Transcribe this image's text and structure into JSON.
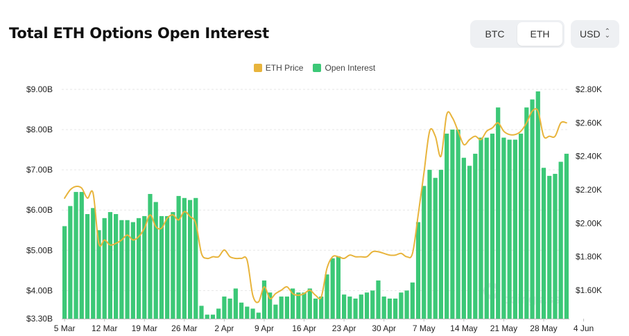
{
  "header": {
    "title": "Total ETH Options Open Interest"
  },
  "asset_toggle": {
    "options": [
      "BTC",
      "ETH"
    ],
    "selected": "ETH"
  },
  "currency": {
    "value": "USD"
  },
  "watermark": "coinglass",
  "colors": {
    "bar": "#3cc877",
    "line": "#e8b43c",
    "grid": "#e6e6e6",
    "axis_text": "#222222"
  },
  "chart_data": {
    "type": "bar",
    "title": "Total ETH Options Open Interest",
    "legend": [
      "ETH Price",
      "Open Interest"
    ],
    "legend_position": "top-center",
    "grid": true,
    "x_ticks": [
      "5 Mar",
      "12 Mar",
      "19 Mar",
      "26 Mar",
      "2 Apr",
      "9 Apr",
      "16 Apr",
      "23 Apr",
      "30 Apr",
      "7 May",
      "14 May",
      "21 May",
      "28 May",
      "4 Jun"
    ],
    "y_left": {
      "ticks": [
        "$3.30B",
        "$4.00B",
        "$5.00B",
        "$6.00B",
        "$7.00B",
        "$8.00B",
        "$9.00B"
      ],
      "tick_values": [
        3.3,
        4,
        5,
        6,
        7,
        8,
        9
      ],
      "range": [
        3.3,
        9.0
      ],
      "unit": "B USD"
    },
    "y_right": {
      "ticks": [
        "$1.60K",
        "$1.80K",
        "$2.00K",
        "$2.20K",
        "$2.40K",
        "$2.60K",
        "$2.80K"
      ],
      "tick_values": [
        1.6,
        1.8,
        2.0,
        2.2,
        2.4,
        2.6,
        2.8
      ],
      "range": [
        1.43,
        2.8
      ],
      "unit": "K USD"
    },
    "series": [
      {
        "name": "Open Interest",
        "type": "bar",
        "axis": "left",
        "start_date": "2023-03-05",
        "values": [
          5.6,
          6.1,
          6.45,
          6.45,
          5.9,
          6.05,
          5.5,
          5.8,
          5.95,
          5.9,
          5.75,
          5.75,
          5.7,
          5.8,
          5.85,
          6.4,
          6.2,
          5.85,
          5.85,
          5.95,
          6.35,
          6.3,
          6.25,
          6.3,
          3.62,
          3.4,
          3.4,
          3.55,
          3.85,
          3.8,
          4.05,
          3.7,
          3.6,
          3.55,
          3.45,
          4.25,
          3.95,
          3.65,
          3.85,
          3.85,
          4.05,
          3.95,
          3.95,
          4.05,
          3.8,
          3.85,
          4.4,
          4.8,
          4.85,
          3.9,
          3.85,
          3.8,
          3.9,
          3.95,
          4.0,
          4.25,
          3.85,
          3.8,
          3.8,
          3.95,
          4.0,
          4.2,
          5.7,
          6.6,
          7.0,
          6.8,
          7.0,
          7.9,
          8.0,
          8.0,
          7.3,
          7.1,
          7.4,
          7.8,
          7.8,
          7.9,
          8.55,
          7.8,
          7.75,
          7.75,
          7.9,
          8.55,
          8.75,
          8.95,
          7.05,
          6.85,
          6.9,
          7.2,
          7.4
        ]
      },
      {
        "name": "ETH Price",
        "type": "line",
        "axis": "right",
        "start_date": "2023-03-05",
        "values": [
          2.15,
          2.2,
          2.22,
          2.21,
          2.15,
          2.18,
          1.88,
          1.9,
          1.87,
          1.88,
          1.9,
          1.93,
          1.9,
          1.92,
          1.97,
          2.05,
          1.98,
          1.97,
          2.03,
          2.05,
          2.02,
          2.07,
          2.04,
          2.0,
          1.82,
          1.79,
          1.8,
          1.8,
          1.84,
          1.8,
          1.79,
          1.79,
          1.78,
          1.57,
          1.53,
          1.62,
          1.55,
          1.58,
          1.6,
          1.62,
          1.58,
          1.57,
          1.58,
          1.6,
          1.57,
          1.56,
          1.73,
          1.8,
          1.8,
          1.79,
          1.81,
          1.8,
          1.8,
          1.8,
          1.83,
          1.83,
          1.82,
          1.81,
          1.81,
          1.82,
          1.8,
          1.82,
          2.05,
          2.3,
          2.55,
          2.52,
          2.4,
          2.65,
          2.63,
          2.55,
          2.47,
          2.5,
          2.52,
          2.5,
          2.55,
          2.57,
          2.6,
          2.55,
          2.53,
          2.53,
          2.55,
          2.6,
          2.67,
          2.67,
          2.52,
          2.52,
          2.52,
          2.6,
          2.6
        ]
      }
    ]
  }
}
